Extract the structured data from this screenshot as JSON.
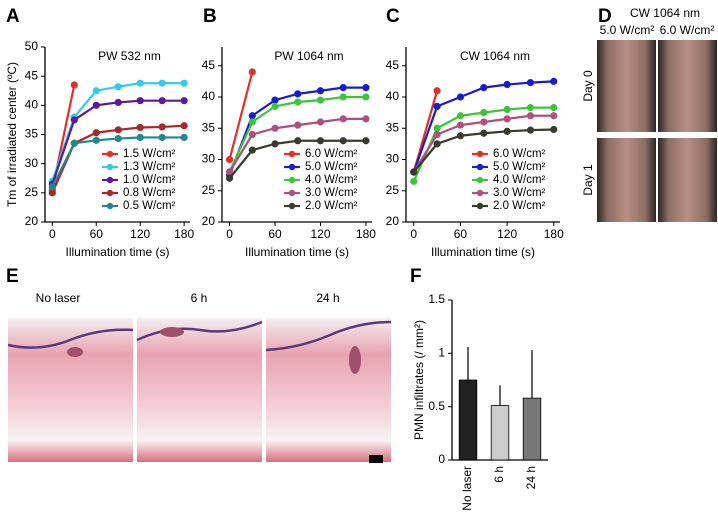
{
  "chart_data": [
    {
      "type": "line",
      "panel_label": "A",
      "title": "PW 532 nm",
      "x_label": "Illumination time (s)",
      "y_label": "Tm of irradiated center (ºC)",
      "x": [
        0,
        30,
        60,
        90,
        120,
        150,
        180
      ],
      "xlim": [
        -10,
        188
      ],
      "xticks": [
        0,
        60,
        120,
        180
      ],
      "ylim": [
        20,
        50
      ],
      "yticks": [
        20,
        25,
        30,
        35,
        40,
        45,
        50
      ],
      "legend": "lower right",
      "series": [
        {
          "name": "1.5 W/cm²",
          "color": "#e0302a",
          "values": [
            25.5,
            43.5,
            null,
            null,
            null,
            null,
            null
          ]
        },
        {
          "name": "1.3 W/cm²",
          "color": "#36c8ef",
          "values": [
            27,
            38,
            42.5,
            43.2,
            43.8,
            43.8,
            43.8
          ]
        },
        {
          "name": "1.0 W/cm²",
          "color": "#5b1a98",
          "values": [
            26.5,
            37.5,
            40,
            40.5,
            40.8,
            40.8,
            40.8
          ]
        },
        {
          "name": "0.8 W/cm²",
          "color": "#a8282a",
          "values": [
            25,
            33.5,
            35.3,
            35.8,
            36.2,
            36.3,
            36.5
          ]
        },
        {
          "name": "0.5 W/cm²",
          "color": "#1f8a8c",
          "values": [
            26,
            33.5,
            34,
            34.3,
            34.5,
            34.5,
            34.5
          ]
        }
      ]
    },
    {
      "type": "line",
      "panel_label": "B",
      "title": "PW 1064 nm",
      "x_label": "Illumination time (s)",
      "x": [
        0,
        30,
        60,
        90,
        120,
        150,
        180
      ],
      "xlim": [
        -10,
        188
      ],
      "xticks": [
        0,
        60,
        120,
        180
      ],
      "ylim": [
        20,
        48
      ],
      "yticks": [
        20,
        25,
        30,
        35,
        40,
        45
      ],
      "legend": "lower right",
      "series": [
        {
          "name": "6.0 W/cm²",
          "color": "#e0302a",
          "values": [
            30,
            44,
            null,
            null,
            null,
            null,
            null
          ]
        },
        {
          "name": "5.0 W/cm²",
          "color": "#1a1ad0",
          "values": [
            27.5,
            37,
            39.5,
            40.5,
            41,
            41.5,
            41.5
          ]
        },
        {
          "name": "4.0 W/cm²",
          "color": "#3cc43c",
          "values": [
            28,
            36,
            38.5,
            39.2,
            39.5,
            40,
            40
          ]
        },
        {
          "name": "3.0 W/cm²",
          "color": "#b04f7e",
          "values": [
            28,
            34,
            35,
            35.5,
            36,
            36.5,
            36.5
          ]
        },
        {
          "name": "2.0 W/cm²",
          "color": "#3a3a2e",
          "values": [
            27,
            31.5,
            32.5,
            33,
            33,
            33,
            33
          ]
        }
      ]
    },
    {
      "type": "line",
      "panel_label": "C",
      "title": "CW 1064 nm",
      "x_label": "Illumination time (s)",
      "x": [
        0,
        30,
        60,
        90,
        120,
        150,
        180
      ],
      "xlim": [
        -10,
        188
      ],
      "xticks": [
        0,
        60,
        120,
        180
      ],
      "ylim": [
        20,
        48
      ],
      "yticks": [
        20,
        25,
        30,
        35,
        40,
        45
      ],
      "legend": "lower right",
      "series": [
        {
          "name": "6.0 W/cm²",
          "color": "#e0302a",
          "values": [
            28,
            41,
            null,
            null,
            null,
            null,
            null
          ]
        },
        {
          "name": "5.0 W/cm²",
          "color": "#1a1ad0",
          "values": [
            28,
            38.5,
            40,
            41.5,
            42,
            42.3,
            42.5
          ]
        },
        {
          "name": "4.0 W/cm²",
          "color": "#3cc43c",
          "values": [
            26.5,
            35,
            37,
            37.5,
            38,
            38.3,
            38.3
          ]
        },
        {
          "name": "3.0 W/cm²",
          "color": "#b04f7e",
          "values": [
            28,
            34,
            35.5,
            36,
            36.5,
            37,
            37
          ]
        },
        {
          "name": "2.0 W/cm²",
          "color": "#3a3a2e",
          "values": [
            28,
            32.5,
            33.8,
            34.2,
            34.5,
            34.7,
            34.8
          ]
        }
      ]
    },
    {
      "type": "bar",
      "panel_label": "F",
      "y_label": "PMN infiltrates (/ mm²)",
      "categories": [
        "No laser",
        "6 h",
        "24 h"
      ],
      "values": [
        0.75,
        0.51,
        0.58
      ],
      "errors": [
        0.31,
        0.19,
        0.45
      ],
      "colors": [
        "#222222",
        "#cccccc",
        "#777777"
      ],
      "ylim": [
        0,
        1.5
      ],
      "yticks": [
        0,
        0.5,
        1,
        1.5
      ]
    }
  ],
  "panel_d": {
    "panel_label": "D",
    "title": "CW 1064 nm",
    "columns": [
      "5.0 W/cm²",
      "6.0 W/cm²"
    ],
    "rows": [
      "Day 0",
      "Day 1"
    ]
  },
  "panel_e": {
    "panel_label": "E",
    "images": [
      "No laser",
      "6 h",
      "24 h"
    ]
  }
}
